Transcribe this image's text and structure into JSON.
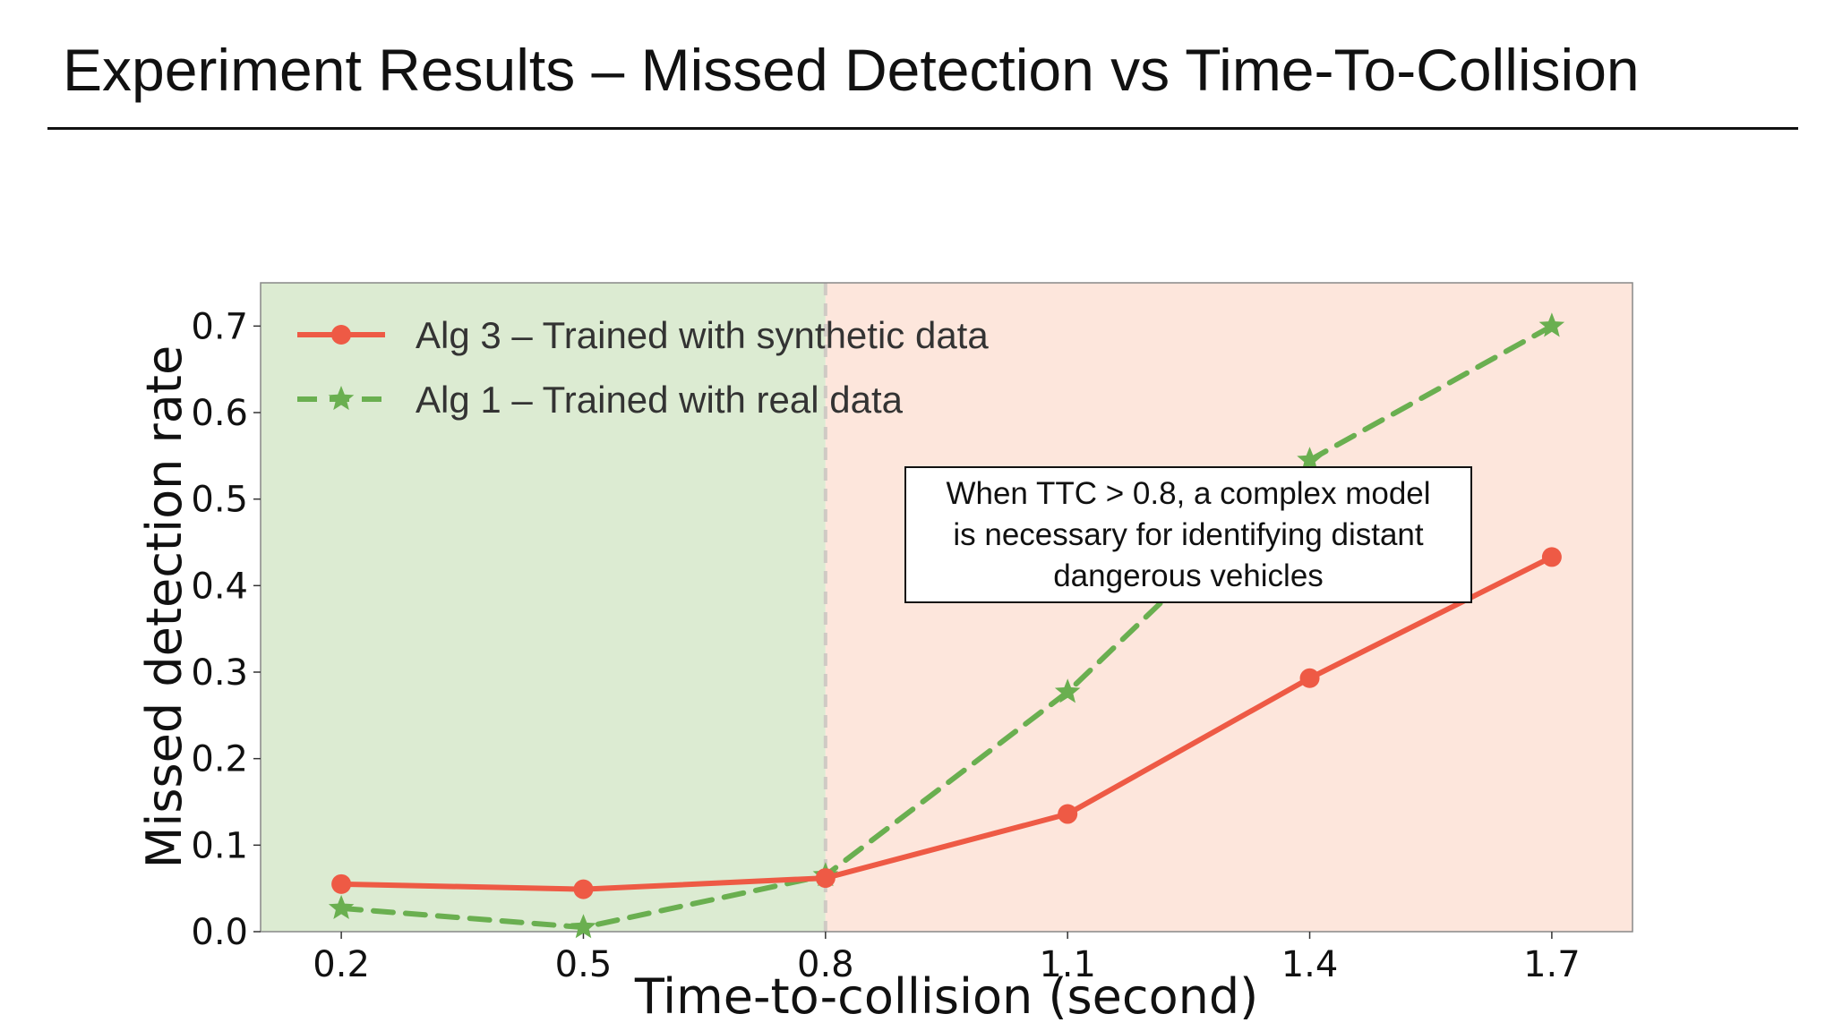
{
  "slide": {
    "title": "Experiment Results – Missed Detection vs Time-To-Collision"
  },
  "chart_data": {
    "type": "line",
    "title": "",
    "xlabel": "Time-to-collision (second)",
    "ylabel": "Missed detection rate",
    "x": [
      0.2,
      0.5,
      0.8,
      1.1,
      1.4,
      1.7
    ],
    "xticks": [
      "0.2",
      "0.5",
      "0.8",
      "1.1",
      "1.4",
      "1.7"
    ],
    "yticks": [
      "0.0",
      "0.1",
      "0.2",
      "0.3",
      "0.4",
      "0.5",
      "0.6",
      "0.7"
    ],
    "xlim": [
      0.1,
      1.8
    ],
    "ylim": [
      0.0,
      0.75
    ],
    "grid": false,
    "legend_position": "top-left",
    "series": [
      {
        "name": "Alg 3 – Trained with synthetic data",
        "values": [
          0.055,
          0.049,
          0.062,
          0.136,
          0.293,
          0.433
        ],
        "color": "#ee5a45",
        "marker": "circle",
        "style": "solid"
      },
      {
        "name": "Alg 1 – Trained with real data",
        "values": [
          0.027,
          0.005,
          0.065,
          0.277,
          0.545,
          0.7
        ],
        "color": "#6aaf50",
        "marker": "star",
        "style": "dashed"
      }
    ],
    "regions": [
      {
        "x_from": 0.1,
        "x_to": 0.8,
        "color": "#dcebd2"
      },
      {
        "x_from": 0.8,
        "x_to": 1.8,
        "color": "#fde6dc"
      }
    ],
    "threshold_line": {
      "x": 0.8,
      "color": "#cfcac4",
      "style": "dashed"
    },
    "annotation": {
      "lines": [
        "When TTC > 0.8, a complex model",
        "is necessary for identifying distant",
        "dangerous vehicles"
      ]
    }
  }
}
